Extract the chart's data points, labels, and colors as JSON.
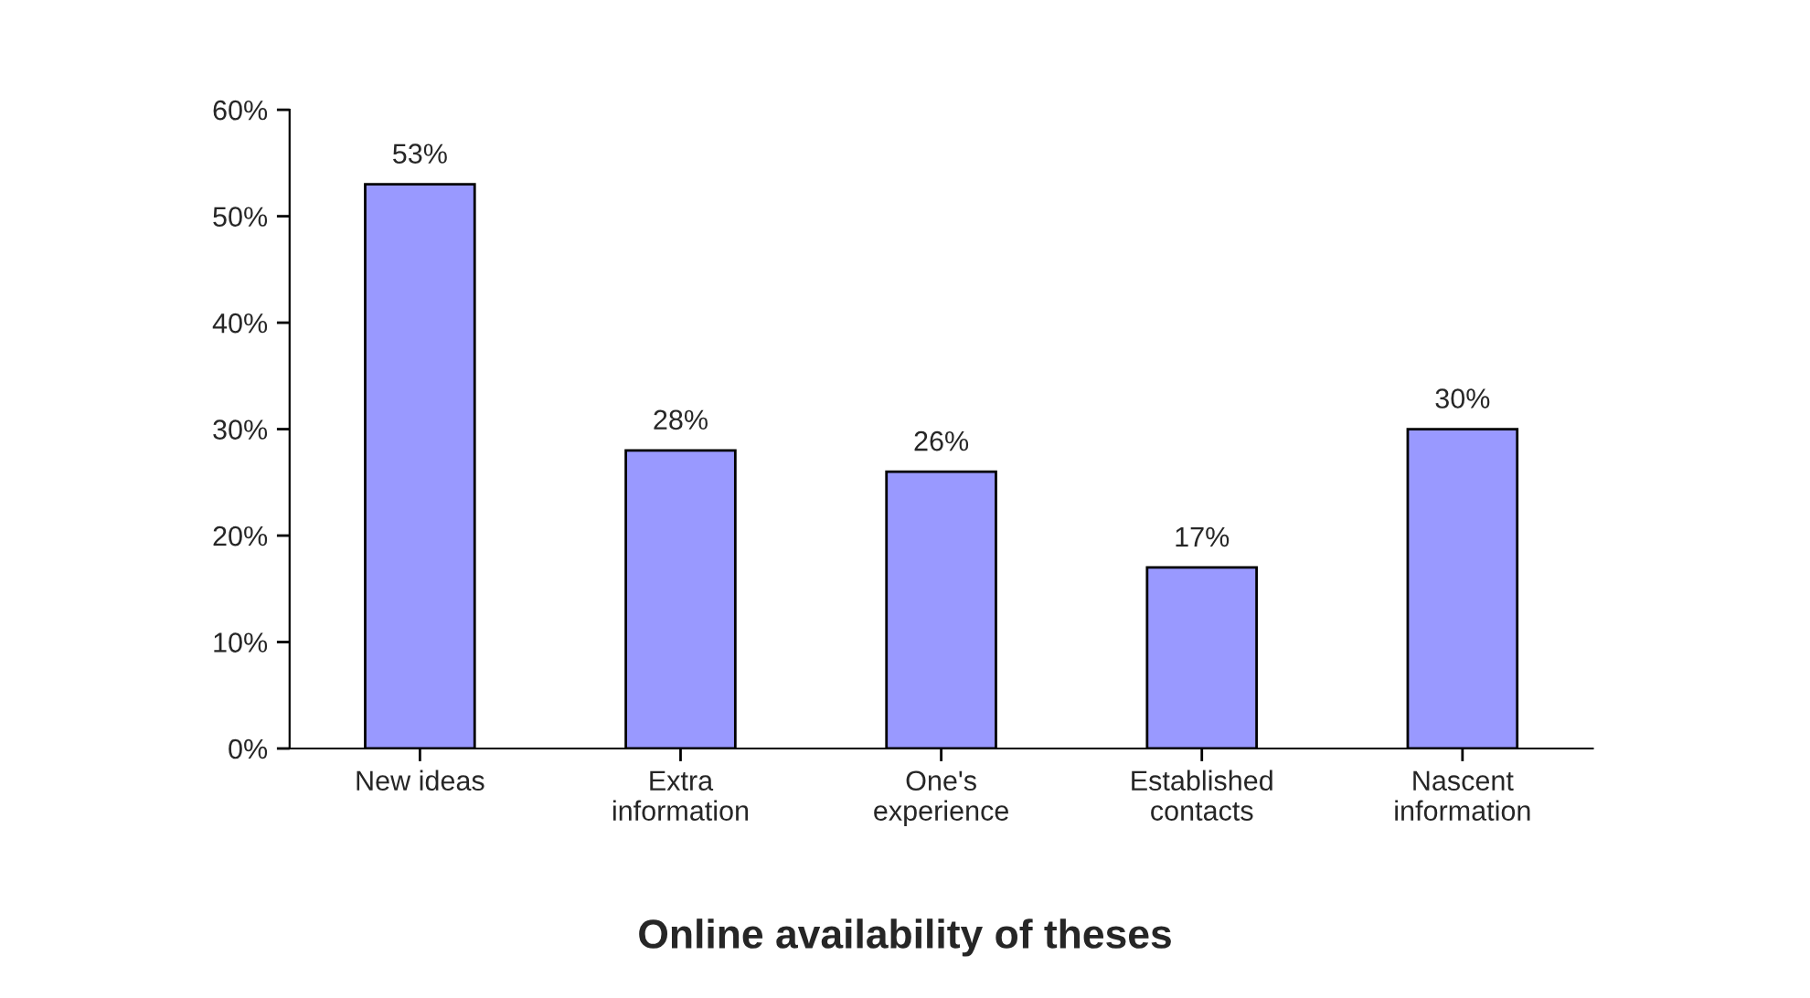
{
  "chart_data": {
    "type": "bar",
    "title": "Online availability of theses",
    "categories": [
      "New ideas",
      "Extra\ninformation",
      "One's\nexperience",
      "Established\ncontacts",
      "Nascent\ninformation"
    ],
    "values": [
      53,
      28,
      26,
      17,
      30
    ],
    "value_labels": [
      "53%",
      "28%",
      "26%",
      "17%",
      "30%"
    ],
    "color": "#9999ff",
    "ylim": [
      0,
      60
    ],
    "yticks": [
      {
        "value": 0,
        "label": "0%"
      },
      {
        "value": 10,
        "label": "10%"
      },
      {
        "value": 20,
        "label": "20%"
      },
      {
        "value": 30,
        "label": "30%"
      },
      {
        "value": 40,
        "label": "40%"
      },
      {
        "value": 50,
        "label": "50%"
      },
      {
        "value": 60,
        "label": "60%"
      }
    ]
  }
}
